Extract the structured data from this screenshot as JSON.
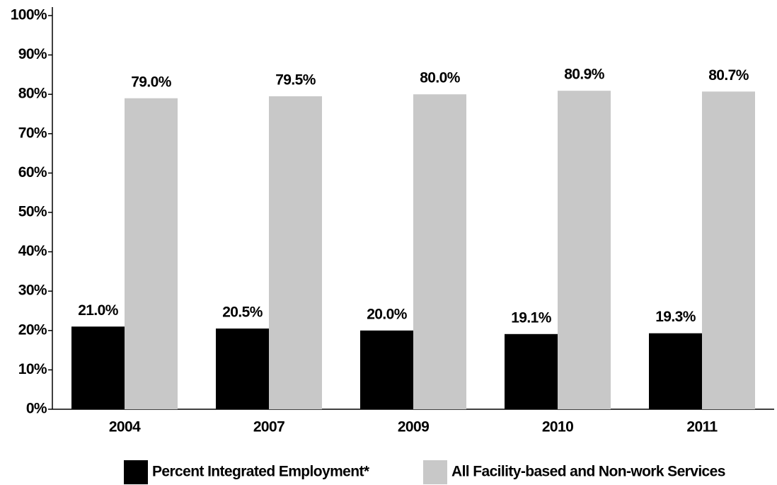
{
  "chart_data": {
    "type": "bar",
    "categories": [
      "2004",
      "2007",
      "2009",
      "2010",
      "2011"
    ],
    "series": [
      {
        "name": "Percent Integrated Employment*",
        "color": "#000000",
        "values": [
          21.0,
          20.5,
          20.0,
          19.1,
          19.3
        ],
        "value_labels": [
          "21.0%",
          "20.5%",
          "20.0%",
          "19.1%",
          "19.3%"
        ]
      },
      {
        "name": "All Facility-based and Non-work Services",
        "color": "#c8c8c8",
        "values": [
          79.0,
          79.5,
          80.0,
          80.9,
          80.7
        ],
        "value_labels": [
          "79.0%",
          "79.5%",
          "80.0%",
          "80.9%",
          "80.7%"
        ]
      }
    ],
    "ylim": [
      0,
      100
    ],
    "yticks": [
      {
        "value": 0,
        "label": "0%"
      },
      {
        "value": 10,
        "label": "10%"
      },
      {
        "value": 20,
        "label": "20%"
      },
      {
        "value": 30,
        "label": "30%"
      },
      {
        "value": 40,
        "label": "40%"
      },
      {
        "value": 50,
        "label": "50%"
      },
      {
        "value": 60,
        "label": "60%"
      },
      {
        "value": 70,
        "label": "70%"
      },
      {
        "value": 80,
        "label": "80%"
      },
      {
        "value": 90,
        "label": "90%"
      },
      {
        "value": 100,
        "label": "100%"
      }
    ],
    "grid": false,
    "legend": "bottom"
  }
}
